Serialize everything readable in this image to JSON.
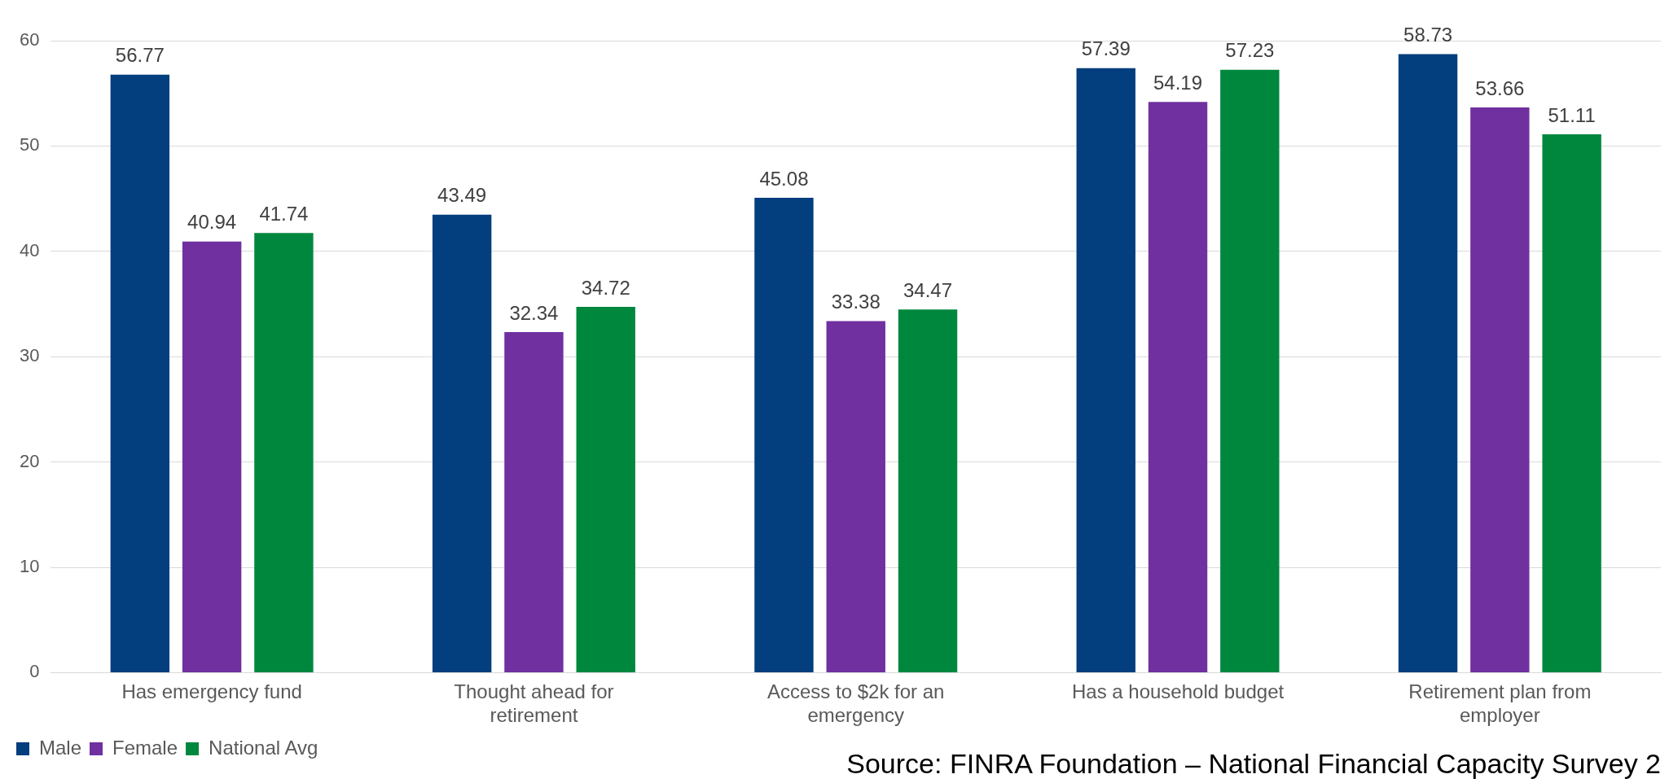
{
  "chart_data": {
    "type": "bar",
    "categories": [
      "Has emergency fund",
      "Thought ahead for retirement",
      "Access to $2k for an emergency",
      "Has a household budget",
      "Retirement plan from employer"
    ],
    "series": [
      {
        "name": "Male",
        "color": "#033e7e",
        "values": [
          56.77,
          43.49,
          45.08,
          57.39,
          58.73
        ]
      },
      {
        "name": "Female",
        "color": "#7030a0",
        "values": [
          40.94,
          32.34,
          33.38,
          54.19,
          53.66
        ]
      },
      {
        "name": "National Avg",
        "color": "#00873e",
        "values": [
          41.74,
          34.72,
          34.47,
          57.23,
          51.11
        ]
      }
    ],
    "ylim": [
      0,
      60
    ],
    "yticks": [
      0,
      10,
      20,
      30,
      40,
      50,
      60
    ],
    "grid": "y",
    "legend": "bottom left",
    "data_labels": true,
    "annotations": [
      "Source: FINRA Foundation – National Financial Capacity Survey 2"
    ]
  }
}
